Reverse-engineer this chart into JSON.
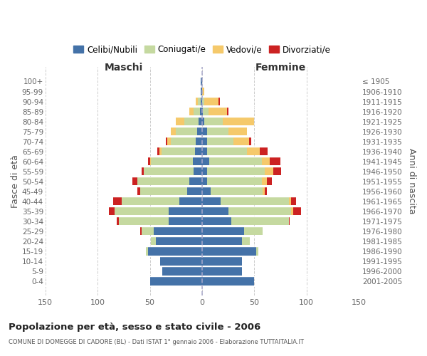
{
  "age_groups": [
    "0-4",
    "5-9",
    "10-14",
    "15-19",
    "20-24",
    "25-29",
    "30-34",
    "35-39",
    "40-44",
    "45-49",
    "50-54",
    "55-59",
    "60-64",
    "65-69",
    "70-74",
    "75-79",
    "80-84",
    "85-89",
    "90-94",
    "95-99",
    "100+"
  ],
  "birth_years": [
    "2001-2005",
    "1996-2000",
    "1991-1995",
    "1986-1990",
    "1981-1985",
    "1976-1980",
    "1971-1975",
    "1966-1970",
    "1961-1965",
    "1956-1960",
    "1951-1955",
    "1946-1950",
    "1941-1945",
    "1936-1940",
    "1931-1935",
    "1926-1930",
    "1921-1925",
    "1916-1920",
    "1911-1915",
    "1906-1910",
    "≤ 1905"
  ],
  "maschi_celibi": [
    50,
    38,
    40,
    52,
    44,
    46,
    32,
    32,
    22,
    14,
    12,
    8,
    9,
    7,
    6,
    5,
    3,
    2,
    1,
    1,
    1
  ],
  "maschi_coniugati": [
    0,
    0,
    0,
    2,
    5,
    12,
    48,
    52,
    55,
    45,
    50,
    48,
    40,
    32,
    24,
    20,
    14,
    6,
    3,
    0,
    0
  ],
  "maschi_vedovi": [
    0,
    0,
    0,
    0,
    0,
    0,
    0,
    0,
    0,
    0,
    0,
    0,
    1,
    2,
    3,
    5,
    8,
    4,
    2,
    0,
    0
  ],
  "maschi_divorziati": [
    0,
    0,
    0,
    0,
    0,
    1,
    2,
    5,
    8,
    3,
    5,
    2,
    2,
    2,
    2,
    0,
    0,
    0,
    0,
    0,
    0
  ],
  "femmine_nubili": [
    50,
    38,
    38,
    52,
    38,
    40,
    28,
    25,
    18,
    8,
    5,
    5,
    7,
    5,
    5,
    5,
    2,
    1,
    0,
    0,
    0
  ],
  "femmine_coniugate": [
    0,
    0,
    0,
    2,
    8,
    18,
    55,
    60,
    65,
    50,
    52,
    55,
    50,
    38,
    25,
    20,
    18,
    5,
    2,
    0,
    0
  ],
  "femmine_vedove": [
    0,
    0,
    0,
    0,
    0,
    0,
    0,
    2,
    2,
    2,
    5,
    8,
    8,
    12,
    15,
    18,
    30,
    18,
    14,
    2,
    0
  ],
  "femmine_divorziate": [
    0,
    0,
    0,
    0,
    0,
    0,
    1,
    8,
    5,
    2,
    5,
    8,
    10,
    8,
    2,
    0,
    0,
    1,
    1,
    0,
    0
  ],
  "color_celibi": "#4472a8",
  "color_coniugati": "#c5d9a0",
  "color_vedovi": "#f5c96b",
  "color_divorziati": "#cc2222",
  "xlim": 150,
  "xticks": [
    -150,
    -100,
    -50,
    0,
    50,
    100,
    150
  ],
  "title": "Popolazione per età, sesso e stato civile - 2006",
  "subtitle": "COMUNE DI DOMEGGE DI CADORE (BL) - Dati ISTAT 1° gennaio 2006 - Elaborazione TUTTAITALIA.IT",
  "label_maschi": "Maschi",
  "label_femmine": "Femmine",
  "ylabel_left": "Fasce di età",
  "ylabel_right": "Anni di nascita",
  "legend_labels": [
    "Celibi/Nubili",
    "Coniugati/e",
    "Vedovi/e",
    "Divorziati/e"
  ]
}
